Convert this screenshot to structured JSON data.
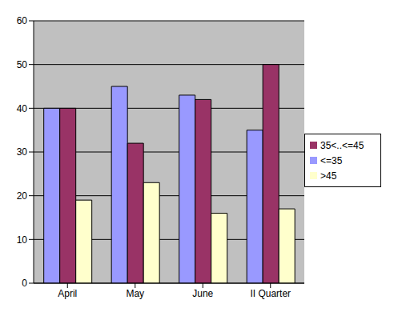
{
  "chart_data": {
    "type": "bar",
    "categories": [
      "April",
      "May",
      "June",
      "II Quarter"
    ],
    "series": [
      {
        "name": "<=35",
        "color": "#9999ff",
        "values": [
          40,
          45,
          43,
          35
        ]
      },
      {
        "name": "35<..<=45",
        "color": "#993366",
        "values": [
          40,
          32,
          42,
          50
        ]
      },
      {
        "name": ">45",
        "color": "#ffffcc",
        "values": [
          19,
          23,
          16,
          17
        ]
      }
    ],
    "ylim": [
      0,
      60
    ],
    "yticks": [
      0,
      10,
      20,
      30,
      40,
      50,
      60
    ],
    "grid": true,
    "legend": "right"
  }
}
